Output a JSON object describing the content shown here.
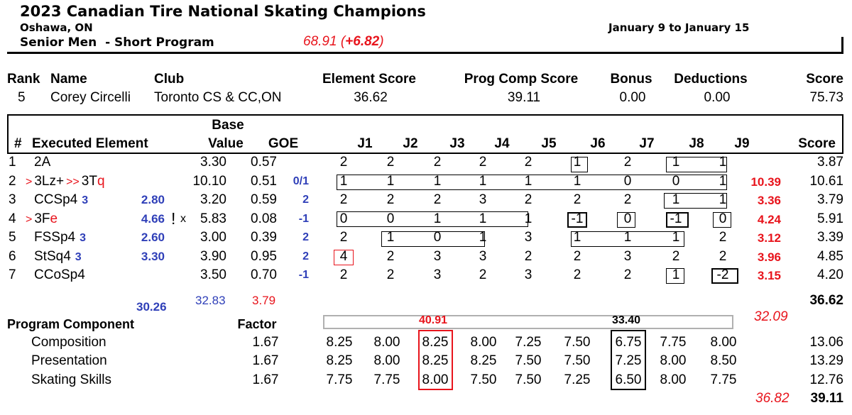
{
  "header": {
    "title": "2023 Canadian Tire National Skating Champions",
    "location": "Oshawa, ON",
    "event": "Senior Men  - Short Program",
    "dates": "January 9 to January 15",
    "note": "68.91 (",
    "note_bold": "+6.82",
    "note_end": ")"
  },
  "summary": {
    "headers": [
      "Rank",
      "Name",
      "Club",
      "Element Score",
      "Prog Comp Score",
      "Bonus",
      "Deductions",
      "Score"
    ],
    "rank": "5",
    "name": "Corey Circelli",
    "club": "Toronto CS & CC,ON",
    "element_score": "36.62",
    "pcs": "39.11",
    "bonus": "0.00",
    "deductions": "0.00",
    "score": "75.73"
  },
  "elements_table": {
    "headers": {
      "num": "#",
      "element": "Executed Element",
      "base_top": "Base",
      "base_bottom": "Value",
      "goe": "GOE",
      "judges": [
        "J1",
        "J2",
        "J3",
        "J4",
        "J5",
        "J6",
        "J7",
        "J8",
        "J9"
      ],
      "score": "Score"
    },
    "rows": [
      {
        "num": "1",
        "element": "2A",
        "base": "3.30",
        "goe": "0.57",
        "judges": [
          "2",
          "2",
          "2",
          "2",
          "2",
          "1",
          "2",
          "1",
          "1"
        ],
        "score": "3.87"
      },
      {
        "num": "2",
        "prefix": ">",
        "element": "3Lz+",
        "prefix2": ">>",
        "element2": "3T",
        "suffix": "q",
        "base": "10.10",
        "goe": "0.51",
        "annot_goe": "0/1",
        "judges": [
          "1",
          "1",
          "1",
          "1",
          "1",
          "1",
          "0",
          "0",
          "1"
        ],
        "right": "10.39",
        "score": "10.61"
      },
      {
        "num": "3",
        "element": "CCSp4",
        "level": "3",
        "annot": "2.80",
        "base": "3.20",
        "goe": "0.59",
        "annot_goe": "2",
        "judges": [
          "2",
          "2",
          "2",
          "3",
          "2",
          "2",
          "2",
          "1",
          "1"
        ],
        "right": "3.36",
        "score": "3.79"
      },
      {
        "num": "4",
        "prefix": ">",
        "element": "3F",
        "suffix": "e",
        "annot": "4.66",
        "mark": "!",
        "x": "x",
        "base": "5.83",
        "goe": "0.08",
        "annot_goe": "-1",
        "judges": [
          "0",
          "0",
          "1",
          "1",
          "1",
          "-1",
          "0",
          "-1",
          "0"
        ],
        "right": "4.24",
        "score": "5.91"
      },
      {
        "num": "5",
        "element": "FSSp4",
        "level": "3",
        "annot": "2.60",
        "base": "3.00",
        "goe": "0.39",
        "annot_goe": "2",
        "judges": [
          "2",
          "1",
          "0",
          "1",
          "3",
          "1",
          "1",
          "1",
          "2"
        ],
        "right": "3.12",
        "score": "3.39"
      },
      {
        "num": "6",
        "element": "StSq4",
        "level": "3",
        "annot": "3.30",
        "base": "3.90",
        "goe": "0.95",
        "annot_goe": "2",
        "judges": [
          "4",
          "2",
          "3",
          "3",
          "2",
          "2",
          "3",
          "2",
          "2"
        ],
        "right": "3.96",
        "score": "4.85"
      },
      {
        "num": "7",
        "element": "CCoSp4",
        "base": "3.50",
        "goe": "0.70",
        "annot_goe": "-1",
        "judges": [
          "2",
          "2",
          "3",
          "2",
          "3",
          "2",
          "2",
          "1",
          "-2"
        ],
        "right": "3.15",
        "score": "4.20"
      }
    ],
    "totals": {
      "annot_total": "30.26",
      "base_annot": "32.83",
      "goe_annot": "3.79",
      "score": "36.62"
    }
  },
  "components": {
    "header": "Program Component",
    "factor_header": "Factor",
    "annot_left": "40.91",
    "annot_right": "33.40",
    "annot_side": "32.09",
    "rows": [
      {
        "name": "Composition",
        "factor": "1.67",
        "judges": [
          "8.25",
          "8.00",
          "8.25",
          "8.00",
          "7.25",
          "7.50",
          "6.75",
          "7.75",
          "8.00"
        ],
        "score": "13.06"
      },
      {
        "name": "Presentation",
        "factor": "1.67",
        "judges": [
          "8.25",
          "8.00",
          "8.25",
          "8.25",
          "7.50",
          "7.50",
          "7.25",
          "8.00",
          "8.50"
        ],
        "score": "13.29"
      },
      {
        "name": "Skating Skills",
        "factor": "1.67",
        "judges": [
          "7.75",
          "7.75",
          "8.00",
          "7.50",
          "7.50",
          "7.25",
          "6.50",
          "8.00",
          "7.75"
        ],
        "score": "12.76"
      }
    ],
    "annot_total": "36.82",
    "total": "39.11"
  }
}
